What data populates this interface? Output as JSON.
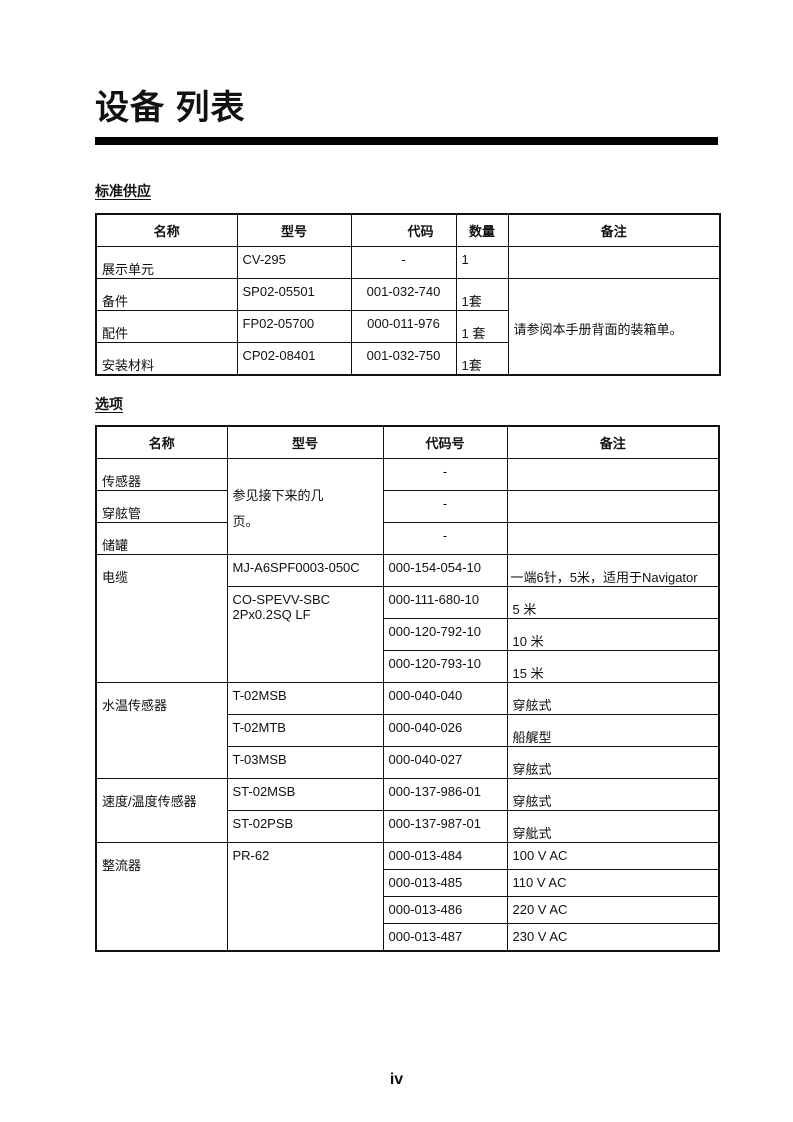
{
  "title": "设备 列表",
  "standard": {
    "heading": "标准供应",
    "headers": [
      "名称",
      "型号",
      "代码",
      "数量",
      "备注"
    ],
    "rows": [
      {
        "name": "展示单元",
        "model": "CV-295",
        "code": "-",
        "qty": "1",
        "note": ""
      },
      {
        "name": "备件",
        "model": "SP02-05501",
        "code": "001-032-740",
        "qty": "1套"
      },
      {
        "name": "配件",
        "model": "FP02-05700",
        "code": "000-011-976",
        "qty": "1 套"
      },
      {
        "name": "安装材料",
        "model": "CP02-08401",
        "code": "001-032-750",
        "qty": "1套"
      }
    ],
    "shared_note": "请参阅本手册背面的装箱单。"
  },
  "options": {
    "heading": "选项",
    "headers": [
      "名称",
      "型号",
      "代码号",
      "备注"
    ],
    "see_pages": "参见接下来的几页。",
    "sensor": {
      "name": "传感器",
      "code": "-"
    },
    "thru_hull_pipe": {
      "name": "穿舷管",
      "code": "-"
    },
    "tank": {
      "name": "储罐",
      "code": "-"
    },
    "cable": {
      "name": "电缆",
      "model1": "MJ-A6SPF0003-050C",
      "code1": "000-154-054-10",
      "note1": "一端6针，5米，适用于Navigator",
      "model2": "CO-SPEVV-SBC 2Px0.2SQ LF",
      "items": [
        {
          "code": "000-111-680-10",
          "note": "5 米"
        },
        {
          "code": "000-120-792-10",
          "note": "10 米"
        },
        {
          "code": "000-120-793-10",
          "note": "15 米"
        }
      ]
    },
    "water_temp": {
      "name": "水温传感器",
      "items": [
        {
          "model": "T-02MSB",
          "code": "000-040-040",
          "note": "穿舷式"
        },
        {
          "model": "T-02MTB",
          "code": "000-040-026",
          "note": "船艉型"
        },
        {
          "model": "T-03MSB",
          "code": "000-040-027",
          "note": "穿舷式"
        }
      ]
    },
    "speed_temp": {
      "name": "速度/温度传感器",
      "items": [
        {
          "model": "ST-02MSB",
          "code": "000-137-986-01",
          "note": "穿舷式"
        },
        {
          "model": "ST-02PSB",
          "code": "000-137-987-01",
          "note": "穿舭式"
        }
      ]
    },
    "rectifier": {
      "name": "整流器",
      "model": "PR-62",
      "items": [
        {
          "code": "000-013-484",
          "note": "100 V AC"
        },
        {
          "code": "000-013-485",
          "note": "110 V AC"
        },
        {
          "code": "000-013-486",
          "note": "220 V AC"
        },
        {
          "code": "000-013-487",
          "note": "230 V AC"
        }
      ]
    }
  },
  "page_number": "iv"
}
